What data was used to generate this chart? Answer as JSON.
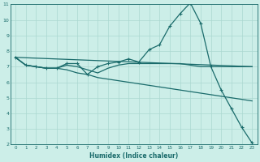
{
  "background_color": "#cceee8",
  "grid_color": "#aad8d0",
  "line_color": "#1a6b6b",
  "xlabel": "Humidex (Indice chaleur)",
  "xlim": [
    -0.5,
    23.5
  ],
  "ylim": [
    2,
    11
  ],
  "yticks": [
    2,
    3,
    4,
    5,
    6,
    7,
    8,
    9,
    10,
    11
  ],
  "xticks": [
    0,
    1,
    2,
    3,
    4,
    5,
    6,
    7,
    8,
    9,
    10,
    11,
    12,
    13,
    14,
    15,
    16,
    17,
    18,
    19,
    20,
    21,
    22,
    23
  ],
  "line1": {
    "x": [
      0,
      1,
      2,
      3,
      4,
      5,
      6,
      7,
      8,
      9,
      10,
      11,
      12,
      13,
      14,
      15,
      16,
      17,
      18,
      19,
      20,
      21,
      22,
      23
    ],
    "y": [
      7.6,
      7.1,
      7.0,
      6.9,
      6.9,
      7.2,
      7.2,
      6.5,
      7.0,
      7.2,
      7.3,
      7.5,
      7.3,
      8.1,
      8.4,
      9.6,
      10.4,
      11.1,
      9.8,
      7.0,
      5.5,
      4.3,
      3.1,
      2.1
    ],
    "marker": true
  },
  "line2": {
    "x": [
      0,
      23
    ],
    "y": [
      7.6,
      7.0
    ],
    "marker": false
  },
  "line3": {
    "x": [
      0,
      1,
      2,
      3,
      4,
      5,
      6,
      7,
      8,
      9,
      10,
      11,
      12,
      13,
      14,
      15,
      16,
      17,
      18,
      19,
      20,
      21,
      22,
      23
    ],
    "y": [
      7.6,
      7.1,
      7.0,
      6.9,
      6.9,
      6.8,
      6.6,
      6.5,
      6.3,
      6.2,
      6.1,
      6.0,
      5.9,
      5.8,
      5.7,
      5.6,
      5.5,
      5.4,
      5.3,
      5.2,
      5.1,
      5.0,
      4.9,
      4.8
    ],
    "marker": false
  },
  "line4": {
    "x": [
      0,
      1,
      2,
      3,
      4,
      5,
      6,
      7,
      8,
      9,
      10,
      11,
      12,
      13,
      14,
      15,
      16,
      17,
      18,
      19,
      20,
      21,
      22,
      23
    ],
    "y": [
      7.6,
      7.1,
      7.0,
      6.9,
      6.9,
      7.1,
      7.0,
      6.8,
      6.6,
      6.9,
      7.1,
      7.2,
      7.2,
      7.2,
      7.2,
      7.2,
      7.2,
      7.1,
      7.0,
      7.0,
      7.0,
      7.0,
      7.0,
      7.0
    ],
    "marker": false
  }
}
